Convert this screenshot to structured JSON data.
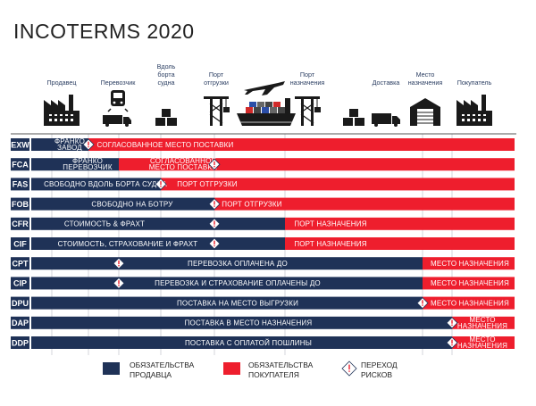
{
  "title": "INCOTERMS  2020",
  "colors": {
    "seller": "#1f3257",
    "buyer": "#ee1e2d",
    "icon": "#1a1a1a",
    "header_text": "#2a3d61",
    "grid": "#c9ccd2"
  },
  "columns": [
    {
      "label": [
        "Продавец"
      ],
      "icon": "factory-icon"
    },
    {
      "label": [
        "Перевозчик"
      ],
      "icon": "train-truck-icon"
    },
    {
      "label": [
        "Вдоль",
        "борта",
        "судна"
      ],
      "icon": "boxes-icon"
    },
    {
      "label": [
        "Порт",
        "отгрузки"
      ],
      "icon": "crane-icon"
    },
    {
      "label": [],
      "icon": "ship-airplane-icon"
    },
    {
      "label": [
        "Порт",
        "назначения"
      ],
      "icon": "crane-icon"
    },
    {
      "label": [],
      "icon": "boxes-icon"
    },
    {
      "label": [
        "Доставка"
      ],
      "icon": "truck-icon"
    },
    {
      "label": [
        "Место",
        "назначения"
      ],
      "icon": "warehouse-icon"
    },
    {
      "label": [
        "Покупатель"
      ],
      "icon": "factory-icon"
    }
  ],
  "rows": [
    {
      "code": "EXW",
      "seller_text": [
        "ФРАНКО",
        "ЗАВОД"
      ],
      "buyer_text": [
        "СОГЛАСОВАННОЕ МЕСТО ПОСТАВКИ"
      ],
      "risk": "at seller"
    },
    {
      "code": "FCA",
      "seller_text": [
        "ФРАНКО",
        "ПЕРЕВОЗЧИК"
      ],
      "buyer_text": [
        "СОГЛАСОВАННОЕ",
        "МЕСТО ПОСТАВКИ"
      ],
      "risk": "at carrier"
    },
    {
      "code": "FAS",
      "seller_text": [
        "СВОБОДНО ВДОЛЬ БОРТА СУДНА"
      ],
      "buyer_text": [
        "ПОРТ ОТГРУЗКИ"
      ],
      "risk": "alongside ship"
    },
    {
      "code": "FOB",
      "seller_text": [
        "СВОБОДНО НА БОТРУ"
      ],
      "buyer_text": [
        "ПОРТ ОТГРУЗКИ"
      ],
      "risk": "port of shipment"
    },
    {
      "code": "CFR",
      "seller_text": [
        "СТОИМОСТЬ & ФРАХТ"
      ],
      "buyer_text": [
        "ПОРТ НАЗНАЧЕНИЯ"
      ],
      "risk": "port of shipment"
    },
    {
      "code": "CIF",
      "seller_text": [
        "СТОИМОСТЬ, СТРАХОВАНИЕ И ФРАХТ"
      ],
      "buyer_text": [
        "ПОРТ НАЗНАЧЕНИЯ"
      ],
      "risk": "port of shipment"
    },
    {
      "code": "CPT",
      "seller_text": [
        "ПЕРЕВОЗКА ОПЛАЧЕНА ДО"
      ],
      "buyer_text": [
        "МЕСТО НАЗНАЧЕНИЯ"
      ],
      "risk": "at carrier"
    },
    {
      "code": "CIP",
      "seller_text": [
        "ПЕРЕВОЗКА И СТРАХОВАНИЕ ОПЛАЧЕНЫ ДО"
      ],
      "buyer_text": [
        "МЕСТО НАЗНАЧЕНИЯ"
      ],
      "risk": "at carrier"
    },
    {
      "code": "DPU",
      "seller_text": [
        "ПОСТАВКА НА МЕСТО ВЫГРУЗКИ"
      ],
      "buyer_text": [
        "МЕСТО НАЗНАЧЕНИЯ"
      ],
      "risk": "destination"
    },
    {
      "code": "DAP",
      "seller_text": [
        "ПОСТАВКА В МЕСТО НАЗНАЧЕНИЯ"
      ],
      "buyer_text": [
        "МЕСТО",
        "НАЗНАЧЕНИЯ"
      ],
      "risk": "buyer"
    },
    {
      "code": "DDP",
      "seller_text": [
        "ПОСТАВКА С ОПЛАТОЙ ПОШЛИНЫ"
      ],
      "buyer_text": [
        "МЕСТО",
        "НАЗНАЧЕНИЯ"
      ],
      "risk": "buyer"
    }
  ],
  "legend": {
    "seller": [
      "ОБЯЗАТЕЛЬСТВА",
      "ПРОДАВЦА"
    ],
    "buyer": [
      "ОБЯЗАТЕЛЬСТВА",
      "ПОКУПАТЕЛЯ"
    ],
    "risk": [
      "ПЕРЕХОД",
      "РИСКОВ"
    ]
  }
}
